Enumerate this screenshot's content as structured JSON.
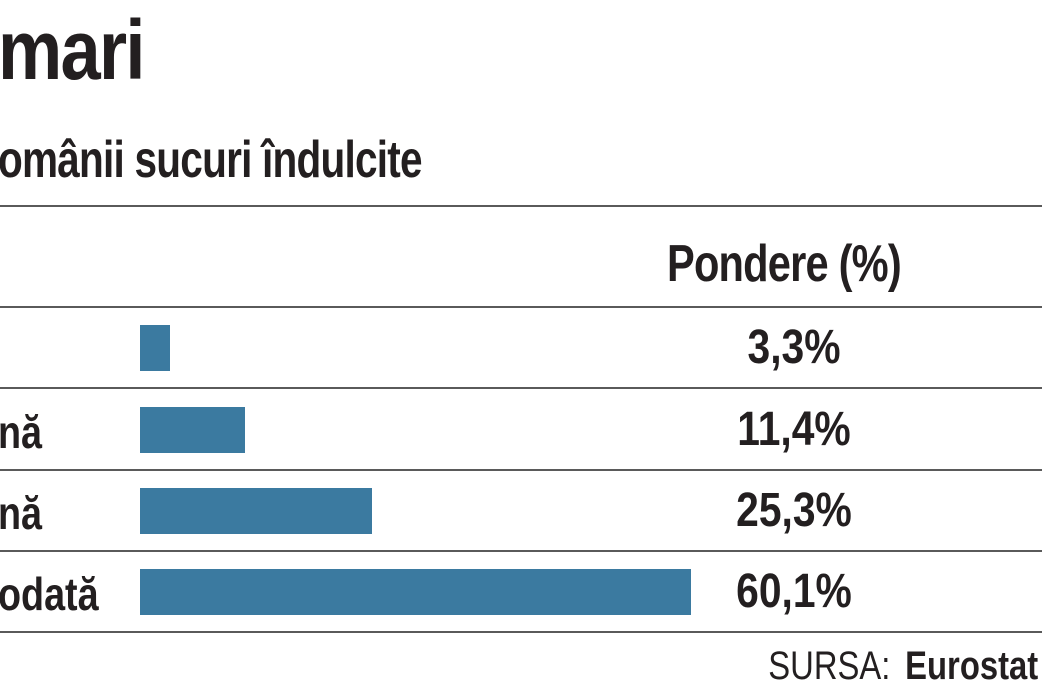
{
  "header": {
    "title": "mari",
    "subtitle": "omânii sucuri îndulcite"
  },
  "chart_data": {
    "type": "bar",
    "orientation": "horizontal",
    "column_header": "Pondere (%)",
    "categories": [
      "",
      "nă",
      "nă",
      "odată"
    ],
    "values": [
      3.3,
      11.4,
      25.3,
      60.1
    ],
    "value_labels": [
      "3,3%",
      "11,4%",
      "25,3%",
      "60,1%"
    ],
    "bar_color": "#3b7aa0",
    "grid": false
  },
  "source": {
    "label": "SURSA:",
    "value": "Eurostat"
  }
}
